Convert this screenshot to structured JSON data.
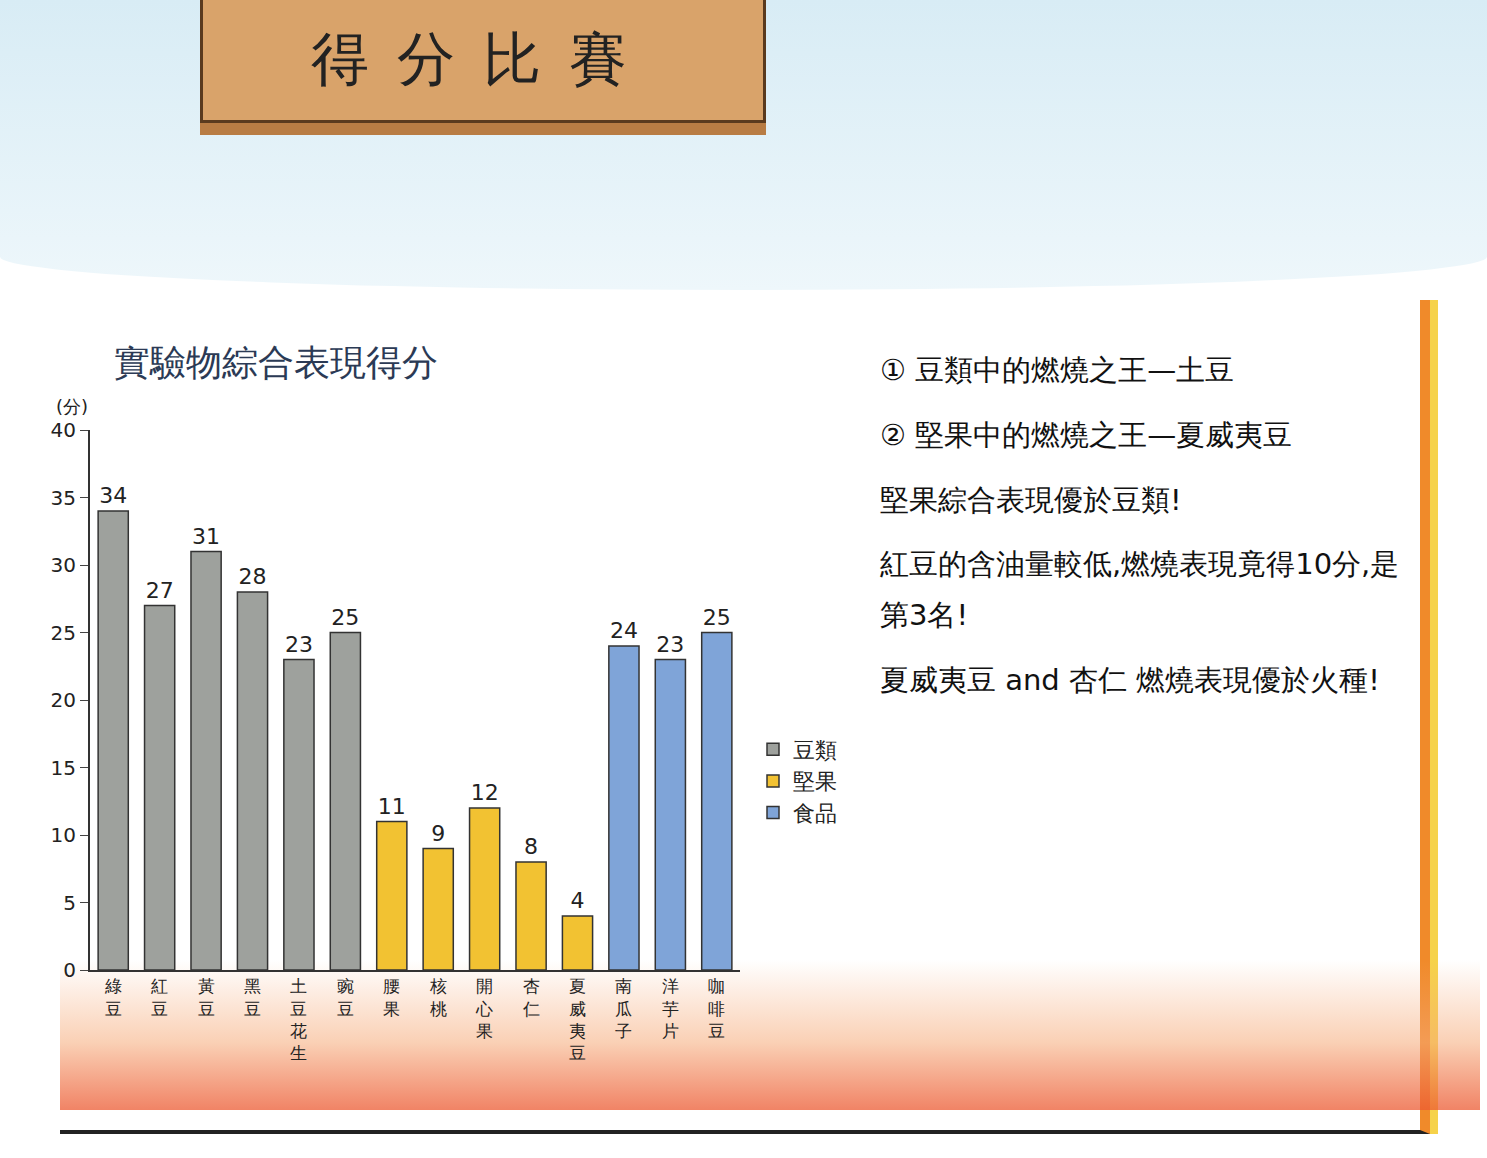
{
  "header": {
    "title": "得分比賽"
  },
  "chart_data": {
    "type": "bar",
    "title": "實驗物綜合表現得分",
    "ylabel": "(分)",
    "categories": [
      "綠豆",
      "紅豆",
      "黃豆",
      "黑豆",
      "土豆花生",
      "豌豆",
      "腰果",
      "核桃",
      "開心果",
      "杏仁",
      "夏威夷豆",
      "南瓜子",
      "洋芋片",
      "咖啡豆"
    ],
    "series": [
      {
        "name": "豆類",
        "color": "#9ea19d",
        "values": [
          34,
          27,
          31,
          28,
          23,
          25,
          null,
          null,
          null,
          null,
          null,
          null,
          null,
          null
        ]
      },
      {
        "name": "堅果",
        "color": "#f2c232",
        "values": [
          null,
          null,
          null,
          null,
          null,
          null,
          11,
          9,
          12,
          8,
          4,
          null,
          null,
          null
        ]
      },
      {
        "name": "食品",
        "color": "#7fa4d8",
        "values": [
          null,
          null,
          null,
          null,
          null,
          null,
          null,
          null,
          null,
          null,
          null,
          24,
          23,
          25
        ]
      }
    ],
    "ylim": [
      0,
      40
    ],
    "yticks": [
      0,
      5,
      10,
      15,
      20,
      25,
      30,
      35,
      40
    ],
    "grid": false,
    "legend": "right",
    "data_labels": true,
    "annotations": [
      "① 豆類中的燃燒之王—土豆",
      "② 堅果中的燃燒之王—夏威夷豆",
      "堅果綜合表現優於豆類!",
      "紅豆的含油量較低,燃燒表現竟得10分,是第3名!",
      "夏威夷豆 and 杏仁 燃燒表現優於火種!"
    ]
  }
}
